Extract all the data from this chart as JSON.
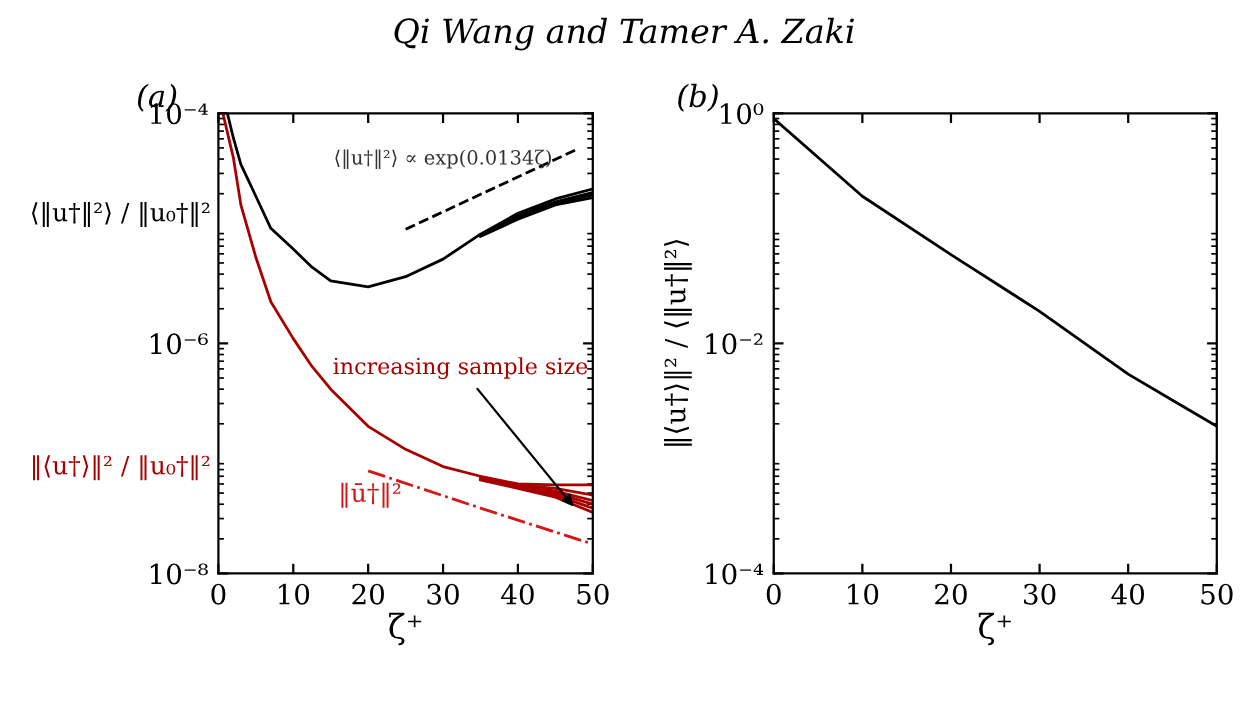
{
  "chart_data": [
    {
      "type": "line",
      "title": "(a)",
      "xlabel": "ζ⁺",
      "xlim": [
        0,
        50
      ],
      "xticks": [
        0,
        10,
        20,
        30,
        40,
        50
      ],
      "ylim": [
        1e-08,
        0.0001
      ],
      "yticks": [
        {
          "value": 1e-08,
          "label": "10⁻⁸"
        },
        {
          "value": 1e-06,
          "label": "10⁻⁶"
        },
        {
          "value": 0.0001,
          "label": "10⁻⁴"
        }
      ],
      "log": "y",
      "grid": false,
      "legend": false,
      "annotations": [
        "Qi Wang and Tamer A. Zaki",
        "⟨‖u†‖²⟩ ∝ exp(0.0134ζ)",
        {
          "text": "increasing sample size",
          "x": 47.9,
          "y": 3.5e-08
        }
      ],
      "series": [
        {
          "name": "⟨‖u†‖²⟩ / ‖u₀†‖²",
          "color": "#000000",
          "line_style": "solid",
          "x": [
            1.2,
            2,
            3,
            5,
            7,
            10,
            12.5,
            15,
            20,
            25,
            30,
            35,
            40,
            45,
            50
          ],
          "values": [
            0.0001,
            6.1e-05,
            3.6e-05,
            1.9e-05,
            1e-05,
            6.6e-06,
            4.6e-06,
            3.5e-06,
            3.1e-06,
            3.8e-06,
            5.4e-06,
            8.9e-06,
            1.35e-05,
            1.8e-05,
            2.2e-05
          ]
        },
        {
          "color": "#000000",
          "line_style": "solid",
          "x": [
            35,
            40,
            45,
            50
          ],
          "values": [
            8.8e-06,
            1.3e-05,
            1.7e-05,
            2.05e-05
          ]
        },
        {
          "color": "#000000",
          "line_style": "solid",
          "x": [
            35,
            40,
            45,
            50
          ],
          "values": [
            8.7e-06,
            1.25e-05,
            1.65e-05,
            1.95e-05
          ]
        },
        {
          "color": "#000000",
          "line_style": "solid",
          "x": [
            35,
            40,
            45,
            50
          ],
          "values": [
            8.5e-06,
            1.2e-05,
            1.6e-05,
            1.85e-05
          ]
        },
        {
          "name": "‖⟨u†⟩‖² / ‖u₀†‖²",
          "color": "#a80000",
          "line_style": "solid",
          "x": [
            0.6,
            2,
            3,
            5,
            7,
            10,
            12.5,
            15,
            20,
            25,
            30,
            35,
            40,
            45,
            50
          ],
          "values": [
            0.0001,
            4.1e-05,
            1.6e-05,
            5.6e-06,
            2.3e-06,
            1.1e-06,
            6.3e-07,
            4e-07,
            1.9e-07,
            1.2e-07,
            8.5e-08,
            7e-08,
            6e-08,
            5.9e-08,
            5.9e-08
          ]
        },
        {
          "color": "#a80000",
          "line_style": "solid",
          "x": [
            35,
            40,
            45,
            50
          ],
          "values": [
            6.9e-08,
            5.9e-08,
            5.5e-08,
            4.8e-08
          ]
        },
        {
          "color": "#a80000",
          "line_style": "solid",
          "x": [
            35,
            40,
            45,
            50
          ],
          "values": [
            6.8e-08,
            5.8e-08,
            5.2e-08,
            4.3e-08
          ]
        },
        {
          "color": "#a80000",
          "line_style": "solid",
          "x": [
            35,
            40,
            45,
            50
          ],
          "values": [
            6.7e-08,
            5.7e-08,
            5e-08,
            4e-08
          ]
        },
        {
          "color": "#a80000",
          "line_style": "solid",
          "x": [
            35,
            40,
            45,
            50
          ],
          "values": [
            6.6e-08,
            5.6e-08,
            4.8e-08,
            3.7e-08
          ]
        },
        {
          "color": "#a80000",
          "line_style": "solid",
          "x": [
            35,
            40,
            45,
            50
          ],
          "values": [
            6.5e-08,
            5.5e-08,
            4.6e-08,
            3.4e-08
          ]
        },
        {
          "name": "‖ū†‖²",
          "color": "#d01818",
          "line_style": "dashdot",
          "x": [
            20,
            35,
            50
          ],
          "values": [
            7.8e-08,
            3.7e-08,
            1.8e-08
          ]
        },
        {
          "color": "#000000",
          "line_style": "dashed",
          "x": [
            25,
            48
          ],
          "values": [
            9.8e-06,
            4.9e-05
          ]
        }
      ]
    },
    {
      "type": "line",
      "title": "(b)",
      "xlabel": "ζ⁺",
      "ylabel": "‖⟨u†⟩‖² / ⟨‖u†‖²⟩",
      "xlim": [
        0,
        50
      ],
      "xticks": [
        0,
        10,
        20,
        30,
        40,
        50
      ],
      "ylim": [
        0.0001,
        1
      ],
      "yticks": [
        {
          "value": 0.0001,
          "label": "10⁻⁴"
        },
        {
          "value": 0.01,
          "label": "10⁻²"
        },
        {
          "value": 1,
          "label": "10⁰"
        }
      ],
      "log": "y",
      "grid": false,
      "legend": false,
      "series": [
        {
          "color": "#000000",
          "line_style": "solid",
          "x": [
            0,
            10,
            20,
            30,
            40,
            45,
            50
          ],
          "values": [
            0.9,
            0.19,
            0.059,
            0.019,
            0.0054,
            0.0032,
            0.0019
          ]
        }
      ]
    }
  ]
}
